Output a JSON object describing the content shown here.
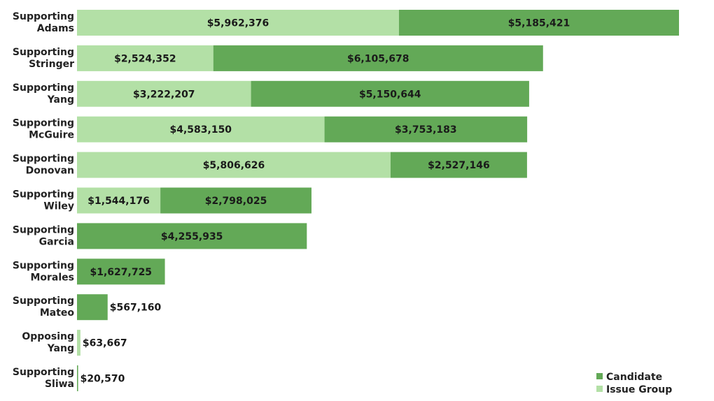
{
  "chart_data": {
    "type": "bar",
    "orientation": "horizontal",
    "stacked": true,
    "categories": [
      [
        "Supporting",
        "Adams"
      ],
      [
        "Supporting",
        "Stringer"
      ],
      [
        "Supporting",
        "Yang"
      ],
      [
        "Supporting",
        "McGuire"
      ],
      [
        "Supporting",
        "Donovan"
      ],
      [
        "Supporting",
        "Wiley"
      ],
      [
        "Supporting",
        "Garcia"
      ],
      [
        "Supporting",
        "Morales"
      ],
      [
        "Supporting",
        "Mateo"
      ],
      [
        "Opposing",
        "Yang"
      ],
      [
        "Supporting",
        "Sliwa"
      ]
    ],
    "series": [
      {
        "name": "Issue Group",
        "color": "#b3e0a6",
        "values": [
          5962376,
          2524352,
          3222207,
          4583150,
          5806626,
          1544176,
          0,
          0,
          0,
          63667,
          0
        ],
        "labels": [
          "$5,962,376",
          "$2,524,352",
          "$3,222,207",
          "$4,583,150",
          "$5,806,626",
          "$1,544,176",
          "",
          "",
          "",
          "$63,667",
          ""
        ]
      },
      {
        "name": "Candidate",
        "color": "#63a957",
        "values": [
          5185421,
          6105678,
          5150644,
          3753183,
          2527146,
          2798025,
          4255935,
          1627725,
          567160,
          0,
          20570
        ],
        "labels": [
          "$5,185,421",
          "$6,105,678",
          "$5,150,644",
          "$3,753,183",
          "$2,527,146",
          "$2,798,025",
          "$4,255,935",
          "$1,627,725",
          "$567,160",
          "",
          "$20,570"
        ]
      }
    ],
    "legend": {
      "position": "bottom-right",
      "entries": [
        "Candidate",
        "Issue Group"
      ]
    },
    "grid": false,
    "xlim": [
      0,
      11147797
    ]
  }
}
